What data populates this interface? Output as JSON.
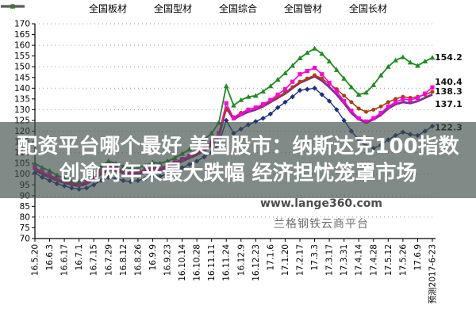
{
  "legend": {
    "items": [
      {
        "label": "全国板材",
        "color": "#1E2F87",
        "marker": "diamond"
      },
      {
        "label": "全国型材",
        "color": "#FF00DC",
        "marker": "square"
      },
      {
        "label": "全国综合",
        "color": "#7E2D96",
        "marker": "line"
      },
      {
        "label": "全国管材",
        "color": "#A84008",
        "marker": "circle"
      },
      {
        "label": "全国长材",
        "color": "#1E8C1E",
        "marker": "triangle"
      }
    ]
  },
  "overlay": {
    "line1": "配资平台哪个最好 美国股市：纳斯达克100指数",
    "line2": "创逾两年来最大跌幅 经济担忧笼罩市场"
  },
  "watermark": {
    "site": "www.lange360.com",
    "platform": "兰格钢铁云商平台"
  },
  "chart_data": {
    "type": "line",
    "title": "",
    "xlabel": "",
    "ylabel": "",
    "ylim": [
      70,
      170
    ],
    "ytick_step": 5,
    "grid_step": 10,
    "grid": "dotted-horizontal",
    "legend_position": "top",
    "x_labels": [
      "16.5.20",
      "16.6.3",
      "16.6.17",
      "16.7.1",
      "16.7.15",
      "16.7.29",
      "16.8.12",
      "16.8.26",
      "16.9.9",
      "16.9.23",
      "16.10.14",
      "16.10.28",
      "16.11.11",
      "16.11.24",
      "16.12.9",
      "16.12.23",
      "17.1.6",
      "17.1.20",
      "17.2.17",
      "17.3.3",
      "17.3.17",
      "17.3.31",
      "17.4.14",
      "17.4.28",
      "17.5.12",
      "17.5.26",
      "17.6.9",
      "预测2017-6-23"
    ],
    "x_label_every": 2,
    "draw_order": [
      2,
      3,
      1,
      0,
      4
    ],
    "series": [
      {
        "name": "全国板材",
        "color": "#1E2F87",
        "marker": "diamond",
        "line_width": 1.4,
        "end_label": "122.3",
        "end_label_dy": 2,
        "values": [
          100.5,
          98.5,
          97,
          95.5,
          94.5,
          93.5,
          93,
          93.5,
          95,
          97,
          98.5,
          98,
          97,
          96.5,
          97,
          98,
          99.5,
          99,
          100,
          101.5,
          103,
          104.5,
          106,
          108,
          110,
          114,
          125,
          119,
          121,
          123,
          124.5,
          126,
          128,
          131,
          133.5,
          136,
          139,
          139.5,
          140,
          137,
          134,
          130,
          125,
          120,
          116,
          113,
          112,
          113.5,
          116,
          118,
          119.5,
          118.5,
          118,
          120,
          122.3
        ]
      },
      {
        "name": "全国型材",
        "color": "#FF00DC",
        "marker": "square",
        "line_width": 1.6,
        "end_label": "140.4",
        "end_label_dy": -6,
        "values": [
          103,
          101,
          99.5,
          98,
          97,
          96,
          95.5,
          96.5,
          99,
          101.5,
          103.5,
          103,
          101.5,
          100.5,
          101,
          102,
          103.5,
          103,
          104,
          105.5,
          107,
          108.5,
          110,
          112,
          115,
          119,
          133,
          126,
          128,
          130,
          131,
          132.5,
          134.5,
          137,
          139.5,
          143,
          146.5,
          148,
          149.5,
          146.5,
          142.5,
          138.5,
          134,
          129.5,
          126,
          124.5,
          126,
          128.5,
          131.5,
          133.5,
          135,
          134.5,
          135.5,
          137.5,
          140.4
        ]
      },
      {
        "name": "全国综合",
        "color": "#7E2D96",
        "marker": "none",
        "line_width": 2.8,
        "end_label": "137.1",
        "end_label_dy": 13,
        "values": [
          102,
          100,
          98.5,
          97,
          96,
          95,
          94.5,
          95.5,
          97.5,
          100,
          102,
          101.5,
          100.5,
          99.5,
          100,
          101,
          102.5,
          102,
          103,
          104.5,
          106,
          107.5,
          109,
          111,
          113.5,
          117.5,
          131,
          125.5,
          127.5,
          129,
          130,
          131.5,
          133.5,
          135.5,
          137.5,
          140,
          142.5,
          144,
          145.5,
          143.5,
          140.5,
          137,
          133,
          128.5,
          125.5,
          124,
          125.5,
          127.5,
          130.5,
          132.5,
          133.5,
          133,
          134,
          135.5,
          137.1
        ]
      },
      {
        "name": "全国管材",
        "color": "#A84008",
        "marker": "circle",
        "line_width": 1.6,
        "end_label": "138.3",
        "end_label_dy": 0,
        "values": [
          102.5,
          100.5,
          99,
          97.5,
          96.5,
          95.5,
          95,
          96,
          98,
          100.5,
          102.5,
          102,
          101,
          100,
          100.5,
          101.5,
          103,
          102.5,
          103.5,
          105,
          106.5,
          108,
          109.5,
          111.5,
          114,
          118,
          130,
          126.5,
          128.5,
          130,
          131,
          132,
          134,
          136,
          138,
          140.5,
          143,
          144.5,
          146,
          144.5,
          142,
          139.5,
          136.5,
          133.5,
          130.5,
          129,
          130,
          131.5,
          133.5,
          135,
          136,
          135.5,
          136,
          137,
          138.3
        ]
      },
      {
        "name": "全国长材",
        "color": "#1E8C1E",
        "marker": "triangle",
        "line_width": 1.8,
        "end_label": "154.2",
        "end_label_dy": 0,
        "values": [
          105,
          103,
          101.5,
          99.5,
          98,
          97,
          96.5,
          98,
          100.5,
          103.5,
          106,
          105,
          103.5,
          102.5,
          103,
          104,
          105.5,
          105,
          106,
          107.5,
          109.5,
          111.5,
          113.5,
          116,
          119,
          124,
          141,
          132,
          134.5,
          136,
          136.5,
          138.5,
          141,
          144,
          147,
          150.5,
          154,
          156.5,
          158.5,
          156,
          152.5,
          148.5,
          144.5,
          140.5,
          137,
          138,
          141.5,
          146,
          150,
          153,
          154.5,
          152,
          150.5,
          152.5,
          154.2
        ]
      }
    ]
  }
}
